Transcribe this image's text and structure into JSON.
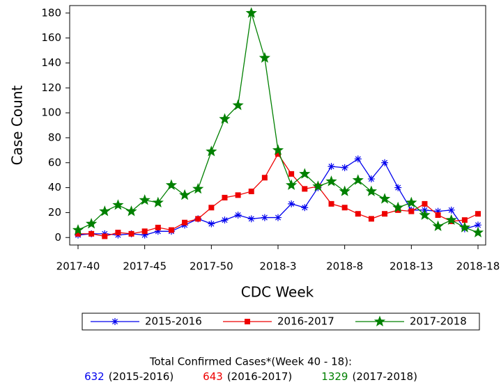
{
  "chart_data": {
    "type": "line",
    "y_label": "Case Count",
    "x_label": "CDC Week",
    "categories": [
      "2017-40",
      null,
      null,
      null,
      null,
      "2017-45",
      null,
      null,
      null,
      null,
      "2017-50",
      null,
      null,
      null,
      null,
      "2018-3",
      null,
      null,
      null,
      null,
      "2018-8",
      null,
      null,
      null,
      null,
      "2018-13",
      null,
      null,
      null,
      null,
      "2018-18"
    ],
    "series": [
      {
        "name": "2015-2016",
        "color": "#0000ee",
        "marker": "asterisk",
        "values": [
          2,
          3,
          3,
          2,
          3,
          2,
          5,
          5,
          10,
          15,
          11,
          14,
          18,
          15,
          16,
          16,
          27,
          24,
          40,
          57,
          56,
          63,
          47,
          60,
          40,
          22,
          22,
          21,
          22,
          7,
          10
        ]
      },
      {
        "name": "2016-2017",
        "color": "#ee0000",
        "marker": "square",
        "values": [
          3,
          3,
          1,
          4,
          3,
          5,
          8,
          6,
          12,
          15,
          24,
          32,
          34,
          37,
          48,
          67,
          51,
          39,
          41,
          27,
          24,
          19,
          15,
          19,
          22,
          21,
          27,
          18,
          13,
          14,
          19
        ]
      },
      {
        "name": "2017-2018",
        "color": "#008000",
        "marker": "star",
        "values": [
          6,
          11,
          21,
          26,
          21,
          30,
          28,
          42,
          34,
          39,
          69,
          95,
          106,
          180,
          144,
          70,
          42,
          51,
          41,
          45,
          37,
          46,
          37,
          31,
          24,
          28,
          18,
          9,
          14,
          8,
          4
        ]
      }
    ],
    "ylim": [
      -6,
      186
    ],
    "yticks": [
      0,
      20,
      40,
      60,
      80,
      100,
      120,
      140,
      160,
      180
    ],
    "footnote": {
      "title": "Total Confirmed Cases*(Week 40 - 18):",
      "totals": [
        {
          "value": 632,
          "color": "#0000ee",
          "label": "(2015-2016)"
        },
        {
          "value": 643,
          "color": "#ee0000",
          "label": "(2016-2017)"
        },
        {
          "value": 1329,
          "color": "#008000",
          "label": "(2017-2018)"
        }
      ]
    }
  }
}
